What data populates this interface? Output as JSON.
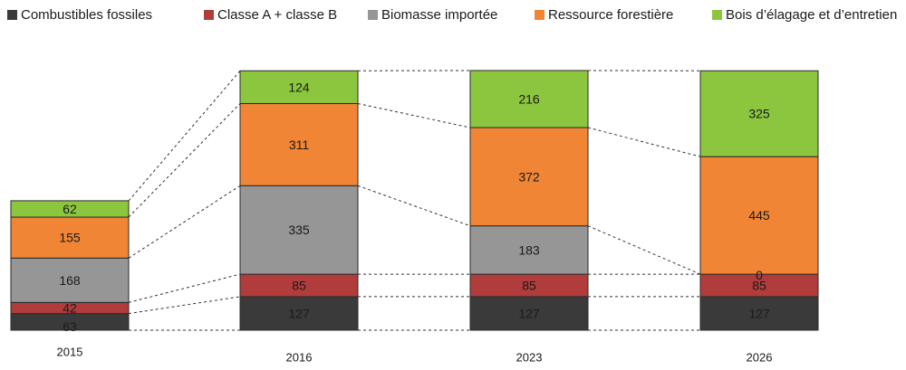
{
  "chart_data": {
    "type": "bar",
    "stacked": true,
    "categories": [
      "2015",
      "2016",
      "2023",
      "2026"
    ],
    "series": [
      {
        "name": "Combustibles fossiles",
        "color": "#3a3a3a",
        "values": [
          63,
          127,
          127,
          127
        ],
        "labels": [
          "63",
          "127",
          "127",
          "127"
        ]
      },
      {
        "name": "Classe A + classe B",
        "color": "#b03c3c",
        "values": [
          42,
          85,
          85,
          85
        ],
        "labels": [
          "42",
          "85",
          "85",
          "85"
        ]
      },
      {
        "name": "Biomasse importée",
        "color": "#969696",
        "values": [
          168,
          335,
          183,
          0
        ],
        "labels": [
          "168",
          "335",
          "183",
          "0"
        ]
      },
      {
        "name": "Ressource forestière",
        "color": "#ef8535",
        "values": [
          155,
          311,
          372,
          445
        ],
        "labels": [
          "155",
          "311",
          "372",
          "445"
        ]
      },
      {
        "name": "Bois d’élagage et d’entretien",
        "color": "#8cc63f",
        "values": [
          62,
          124,
          216,
          325
        ],
        "labels": [
          "62",
          "124",
          "216",
          "325"
        ]
      }
    ],
    "legend_position": "top",
    "grid": false,
    "connector_lines": "dashed"
  }
}
